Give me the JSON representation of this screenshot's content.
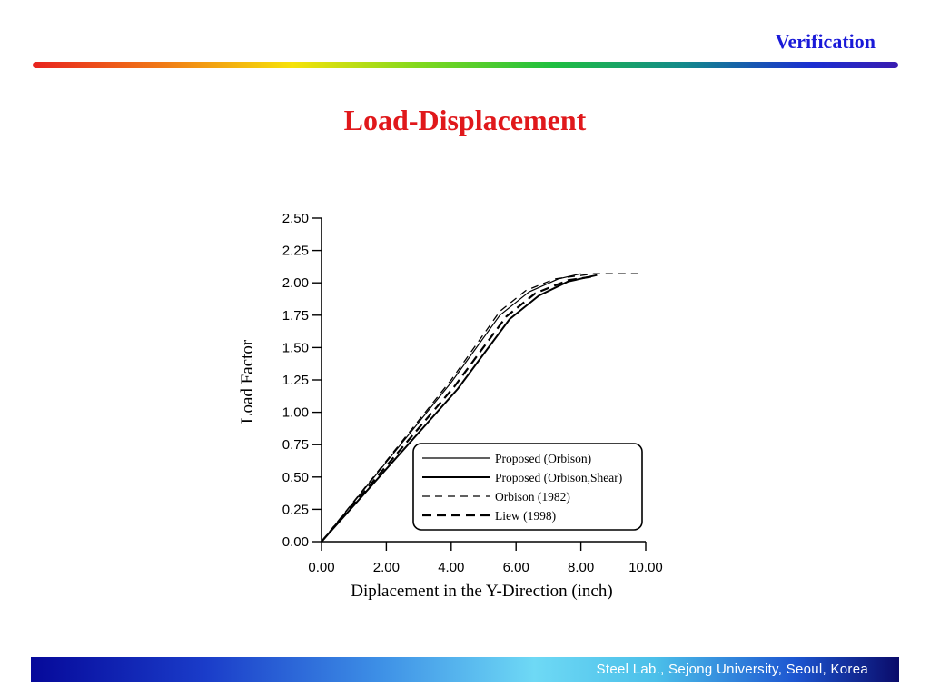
{
  "header": {
    "title": "Verification"
  },
  "slide": {
    "title": "Load-Displacement"
  },
  "footer": {
    "text": "Steel Lab., Sejong University, Seoul, Korea"
  },
  "chart_data": {
    "type": "line",
    "xlabel": "Diplacement in the Y-Direction (inch)",
    "ylabel": "Load Factor",
    "xlim": [
      0,
      10
    ],
    "ylim": [
      0,
      2.5
    ],
    "x_ticks": [
      "0.00",
      "2.00",
      "4.00",
      "6.00",
      "8.00",
      "10.00"
    ],
    "y_ticks": [
      "0.00",
      "0.25",
      "0.50",
      "0.75",
      "1.00",
      "1.25",
      "1.50",
      "1.75",
      "2.00",
      "2.25",
      "2.50"
    ],
    "grid": false,
    "legend_position": "bottom-right",
    "series": [
      {
        "name": "Proposed (Orbison)",
        "style": "solid-thin",
        "points": [
          [
            0,
            0
          ],
          [
            4.0,
            1.23
          ],
          [
            5.5,
            1.75
          ],
          [
            6.4,
            1.93
          ],
          [
            7.3,
            2.03
          ],
          [
            8.0,
            2.07
          ]
        ]
      },
      {
        "name": "Proposed (Orbison,Shear)",
        "style": "solid-thick",
        "points": [
          [
            0,
            0
          ],
          [
            4.2,
            1.18
          ],
          [
            5.8,
            1.72
          ],
          [
            6.7,
            1.9
          ],
          [
            7.6,
            2.01
          ],
          [
            8.5,
            2.06
          ]
        ]
      },
      {
        "name": "Orbison (1982)",
        "style": "dashed-thin",
        "points": [
          [
            0,
            0
          ],
          [
            4.0,
            1.25
          ],
          [
            5.5,
            1.78
          ],
          [
            6.3,
            1.94
          ],
          [
            7.2,
            2.03
          ],
          [
            8.4,
            2.07
          ],
          [
            9.8,
            2.07
          ]
        ]
      },
      {
        "name": "Liew (1998)",
        "style": "dashed-thick",
        "points": [
          [
            0,
            0
          ],
          [
            4.1,
            1.2
          ],
          [
            5.7,
            1.74
          ],
          [
            6.6,
            1.92
          ],
          [
            7.6,
            2.02
          ],
          [
            8.4,
            2.05
          ]
        ]
      }
    ]
  }
}
